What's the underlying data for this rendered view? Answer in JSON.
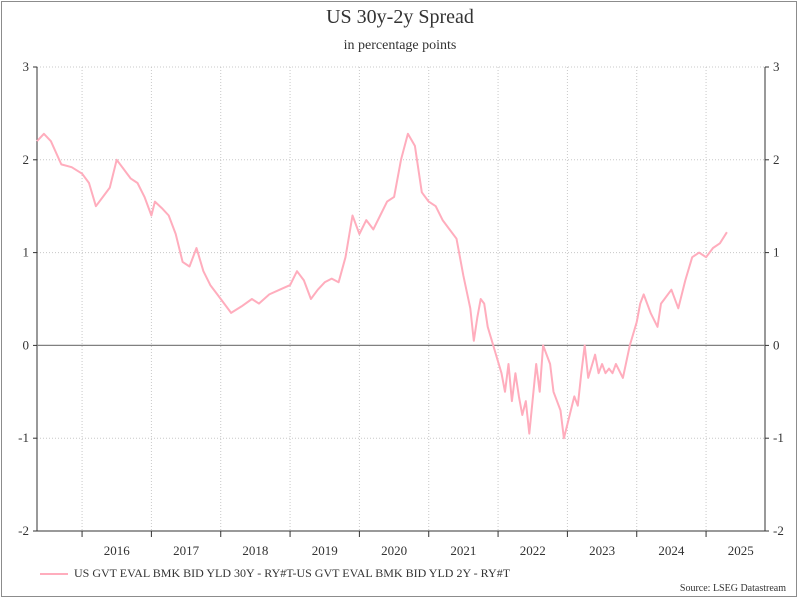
{
  "title": "US 30y-2y Spread",
  "subtitle": "in percentage points",
  "source": "Source: LSEG Datastream",
  "legend": {
    "label": "US GVT EVAL BMK BID YLD 30Y - RY#T-US GVT EVAL BMK BID YLD 2Y - RY#T"
  },
  "colors": {
    "series": "#ffadbd",
    "zero_line": "#808080",
    "grid": "#c8c8c8",
    "axis": "#333333"
  },
  "chart_data": {
    "type": "line",
    "title": "US 30y-2y Spread",
    "subtitle": "in percentage points",
    "xlabel": "",
    "ylabel": "",
    "xlim": [
      2015.35,
      2025.85
    ],
    "ylim": [
      -2,
      3
    ],
    "y_ticks": [
      -2,
      -1,
      0,
      1,
      2,
      3
    ],
    "x_tick_labels": [
      "2016",
      "2017",
      "2018",
      "2019",
      "2020",
      "2021",
      "2022",
      "2023",
      "2024",
      "2025"
    ],
    "grid": true,
    "legend_position": "bottom-left",
    "series": [
      {
        "name": "US GVT EVAL BMK BID YLD 30Y - RY#T-US GVT EVAL BMK BID YLD 2Y - RY#T",
        "x": [
          2015.35,
          2015.45,
          2015.55,
          2015.7,
          2015.85,
          2016.0,
          2016.1,
          2016.2,
          2016.3,
          2016.4,
          2016.5,
          2016.6,
          2016.7,
          2016.8,
          2016.9,
          2017.0,
          2017.05,
          2017.15,
          2017.25,
          2017.35,
          2017.45,
          2017.55,
          2017.65,
          2017.75,
          2017.85,
          2017.95,
          2018.05,
          2018.15,
          2018.3,
          2018.45,
          2018.55,
          2018.7,
          2018.85,
          2019.0,
          2019.1,
          2019.2,
          2019.3,
          2019.4,
          2019.5,
          2019.6,
          2019.7,
          2019.8,
          2019.9,
          2020.0,
          2020.1,
          2020.2,
          2020.3,
          2020.4,
          2020.5,
          2020.6,
          2020.7,
          2020.8,
          2020.9,
          2021.0,
          2021.1,
          2021.2,
          2021.3,
          2021.4,
          2021.5,
          2021.6,
          2021.65,
          2021.7,
          2021.75,
          2021.8,
          2021.85,
          2021.95,
          2022.05,
          2022.1,
          2022.15,
          2022.2,
          2022.25,
          2022.3,
          2022.35,
          2022.4,
          2022.45,
          2022.55,
          2022.6,
          2022.65,
          2022.75,
          2022.8,
          2022.9,
          2022.95,
          2023.0,
          2023.1,
          2023.15,
          2023.2,
          2023.25,
          2023.3,
          2023.4,
          2023.45,
          2023.5,
          2023.55,
          2023.6,
          2023.65,
          2023.7,
          2023.8,
          2023.9,
          2024.0,
          2024.05,
          2024.1,
          2024.2,
          2024.3,
          2024.35,
          2024.4,
          2024.5,
          2024.6,
          2024.7,
          2024.8,
          2024.9,
          2025.0,
          2025.1,
          2025.2,
          2025.3
        ],
        "y": [
          2.2,
          2.28,
          2.2,
          1.95,
          1.92,
          1.85,
          1.75,
          1.5,
          1.6,
          1.7,
          2.0,
          1.9,
          1.8,
          1.75,
          1.6,
          1.4,
          1.55,
          1.48,
          1.4,
          1.2,
          0.9,
          0.85,
          1.05,
          0.8,
          0.65,
          0.55,
          0.45,
          0.35,
          0.42,
          0.5,
          0.45,
          0.55,
          0.6,
          0.65,
          0.8,
          0.7,
          0.5,
          0.6,
          0.68,
          0.72,
          0.68,
          0.95,
          1.4,
          1.2,
          1.35,
          1.25,
          1.4,
          1.55,
          1.6,
          2.0,
          2.28,
          2.15,
          1.65,
          1.55,
          1.5,
          1.35,
          1.25,
          1.15,
          0.75,
          0.4,
          0.05,
          0.3,
          0.5,
          0.45,
          0.2,
          -0.05,
          -0.3,
          -0.5,
          -0.2,
          -0.6,
          -0.3,
          -0.55,
          -0.75,
          -0.6,
          -0.95,
          -0.2,
          -0.5,
          0.0,
          -0.2,
          -0.5,
          -0.7,
          -1.0,
          -0.85,
          -0.55,
          -0.65,
          -0.3,
          0.0,
          -0.35,
          -0.1,
          -0.3,
          -0.2,
          -0.3,
          -0.25,
          -0.3,
          -0.2,
          -0.35,
          0.0,
          0.25,
          0.45,
          0.55,
          0.35,
          0.2,
          0.45,
          0.5,
          0.6,
          0.4,
          0.7,
          0.95,
          1.0,
          0.95,
          1.05,
          1.1,
          1.22
        ]
      }
    ]
  }
}
